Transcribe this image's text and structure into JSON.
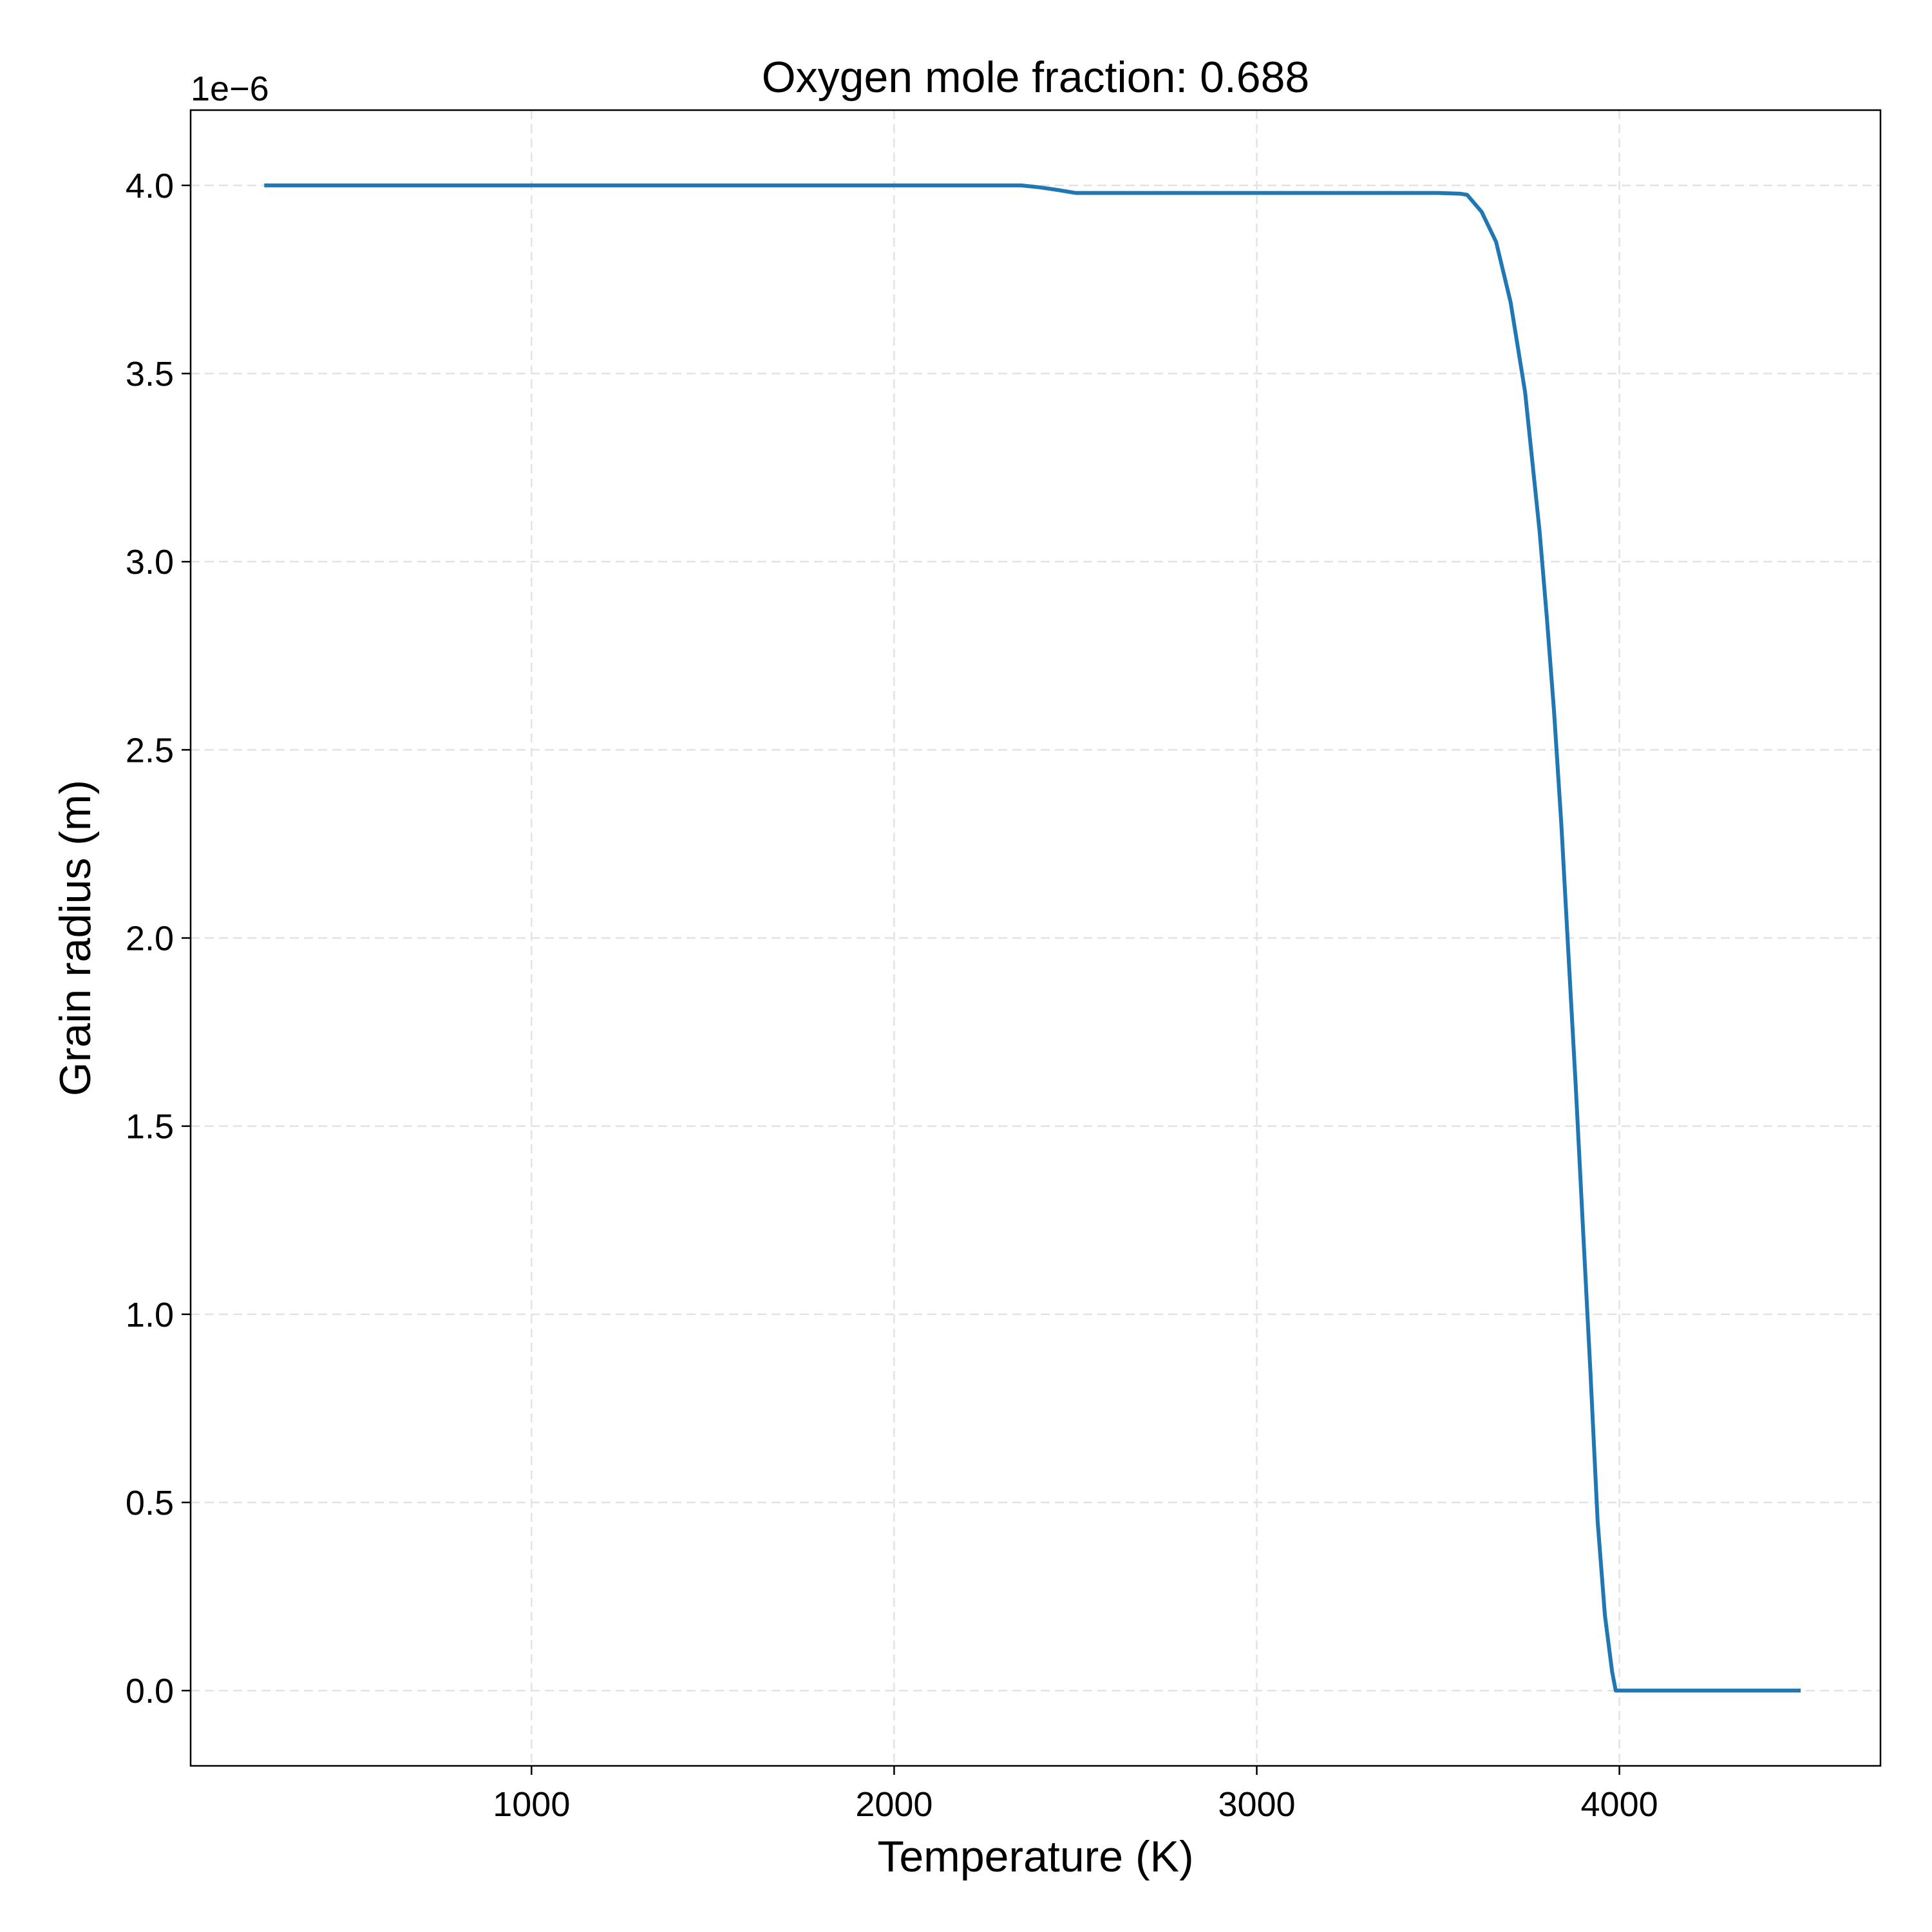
{
  "chart_data": {
    "type": "line",
    "title": "Oxygen mole fraction: 0.688",
    "xlabel": "Temperature (K)",
    "ylabel": "Grain radius (m)",
    "y_offset_label": "1e−6",
    "xlim": [
      60,
      4720
    ],
    "ylim": [
      -0.2,
      4.2
    ],
    "xticks": [
      1000,
      2000,
      3000,
      4000
    ],
    "xtick_labels": [
      "1000",
      "2000",
      "3000",
      "4000"
    ],
    "yticks": [
      0.0,
      0.5,
      1.0,
      1.5,
      2.0,
      2.5,
      3.0,
      3.5,
      4.0
    ],
    "ytick_labels": [
      "0.0",
      "0.5",
      "1.0",
      "1.5",
      "2.0",
      "2.5",
      "3.0",
      "3.5",
      "4.0"
    ],
    "grid": true,
    "series": [
      {
        "color": "#1f77b4",
        "x": [
          263,
          1000,
          2000,
          2350,
          2400,
          2450,
          2500,
          2520,
          3000,
          3500,
          3560,
          3580,
          3620,
          3660,
          3700,
          3740,
          3780,
          3800,
          3820,
          3840,
          3860,
          3880,
          3900,
          3920,
          3940,
          3960,
          3980,
          3990,
          4000,
          4500
        ],
        "y": [
          4.0,
          4.0,
          4.0,
          4.0,
          3.995,
          3.988,
          3.98,
          3.98,
          3.98,
          3.98,
          3.978,
          3.975,
          3.93,
          3.85,
          3.69,
          3.45,
          3.08,
          2.85,
          2.6,
          2.3,
          1.95,
          1.6,
          1.22,
          0.85,
          0.45,
          0.2,
          0.05,
          0.0,
          0.0,
          0.0
        ]
      }
    ]
  }
}
